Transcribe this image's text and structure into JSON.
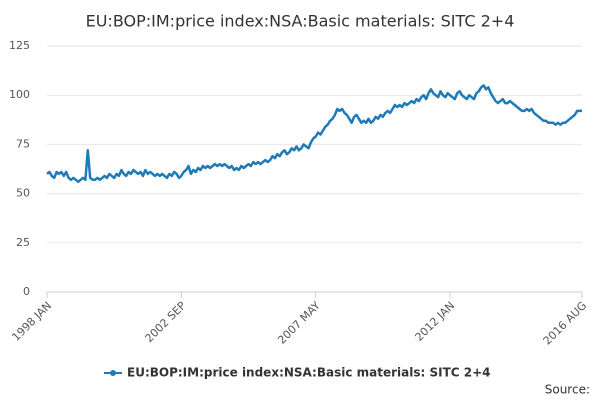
{
  "chart_data": {
    "type": "line",
    "title": "EU:BOP:IM:price index:NSA:Basic materials: SITC 2+4",
    "source": "Source:",
    "categories": [
      "1998 JAN",
      null,
      null,
      null,
      null,
      null,
      null,
      null,
      null,
      null,
      null,
      null,
      null,
      null,
      null,
      null,
      null,
      null,
      null,
      null,
      null,
      null,
      null,
      null,
      null,
      null,
      null,
      null,
      null,
      null,
      null,
      null,
      null,
      null,
      null,
      null,
      null,
      null,
      null,
      null,
      null,
      null,
      null,
      null,
      null,
      null,
      null,
      null,
      null,
      null,
      null,
      null,
      null,
      null,
      null,
      null,
      "2002 SEP",
      null,
      null,
      null,
      null,
      null,
      null,
      null,
      null,
      null,
      null,
      null,
      null,
      null,
      null,
      null,
      null,
      null,
      null,
      null,
      null,
      null,
      null,
      null,
      null,
      null,
      null,
      null,
      null,
      null,
      null,
      null,
      null,
      null,
      null,
      null,
      null,
      null,
      null,
      null,
      null,
      null,
      null,
      null,
      null,
      null,
      null,
      null,
      null,
      null,
      null,
      null,
      null,
      null,
      null,
      null,
      "2007 MAY",
      null,
      null,
      null,
      null,
      null,
      null,
      null,
      null,
      null,
      null,
      null,
      null,
      null,
      null,
      null,
      null,
      null,
      null,
      null,
      null,
      null,
      null,
      null,
      null,
      null,
      null,
      null,
      null,
      null,
      null,
      null,
      null,
      null,
      null,
      null,
      null,
      null,
      null,
      null,
      null,
      null,
      null,
      null,
      null,
      null,
      null,
      null,
      null,
      null,
      null,
      null,
      null,
      null,
      null,
      null,
      "2012 JAN",
      null,
      null,
      null,
      null,
      null,
      null,
      null,
      null,
      null,
      null,
      null,
      null,
      null,
      null,
      null,
      null,
      null,
      null,
      null,
      null,
      null,
      null,
      null,
      null,
      null,
      null,
      null,
      null,
      null,
      null,
      null,
      null,
      null,
      null,
      null,
      null,
      null,
      null,
      null,
      null,
      null,
      null,
      null,
      null,
      null,
      null,
      null,
      null,
      null,
      null,
      null,
      null,
      null,
      null,
      "2016 AUG"
    ],
    "series": [
      {
        "name": "EU:BOP:IM:price index:NSA:Basic materials: SITC 2+4",
        "color": "#1f7ab8",
        "values": [
          60,
          61,
          59,
          58,
          61,
          60,
          61,
          59,
          61,
          58,
          57,
          58,
          57,
          56,
          57,
          58,
          57,
          72,
          58,
          57,
          57,
          58,
          57,
          58,
          59,
          58,
          60,
          59,
          58,
          60,
          59,
          62,
          60,
          59,
          61,
          60,
          62,
          61,
          60,
          61,
          59,
          62,
          60,
          61,
          60,
          59,
          60,
          59,
          60,
          59,
          58,
          60,
          59,
          61,
          60,
          58,
          59,
          61,
          62,
          64,
          60,
          62,
          61,
          63,
          62,
          64,
          63,
          64,
          63,
          64,
          65,
          64,
          65,
          64,
          65,
          64,
          63,
          64,
          62,
          63,
          62,
          64,
          63,
          64,
          65,
          64,
          66,
          65,
          66,
          65,
          66,
          67,
          66,
          67,
          69,
          68,
          70,
          69,
          71,
          72,
          70,
          71,
          73,
          72,
          74,
          72,
          73,
          75,
          74,
          73,
          76,
          78,
          79,
          81,
          80,
          82,
          84,
          85,
          87,
          88,
          90,
          93,
          92,
          93,
          91,
          90,
          88,
          86,
          89,
          90,
          88,
          86,
          87,
          86,
          88,
          86,
          87,
          89,
          88,
          90,
          89,
          91,
          92,
          91,
          93,
          95,
          94,
          95,
          94,
          96,
          95,
          96,
          97,
          96,
          98,
          97,
          99,
          100,
          98,
          101,
          103,
          101,
          100,
          99,
          102,
          100,
          99,
          101,
          100,
          99,
          98,
          101,
          102,
          100,
          99,
          98,
          100,
          99,
          98,
          101,
          102,
          104,
          105,
          103,
          104,
          101,
          99,
          97,
          96,
          97,
          98,
          96,
          96,
          97,
          96,
          95,
          94,
          93,
          92,
          92,
          93,
          92,
          93,
          91,
          90,
          89,
          88,
          87,
          87,
          86,
          86,
          86,
          85,
          86,
          85,
          86,
          86,
          87,
          88,
          89,
          90,
          92,
          92,
          92
        ]
      }
    ],
    "ylim": [
      0,
      125
    ],
    "yticks": [
      0,
      25,
      50,
      75,
      100,
      125
    ],
    "grid": true
  }
}
